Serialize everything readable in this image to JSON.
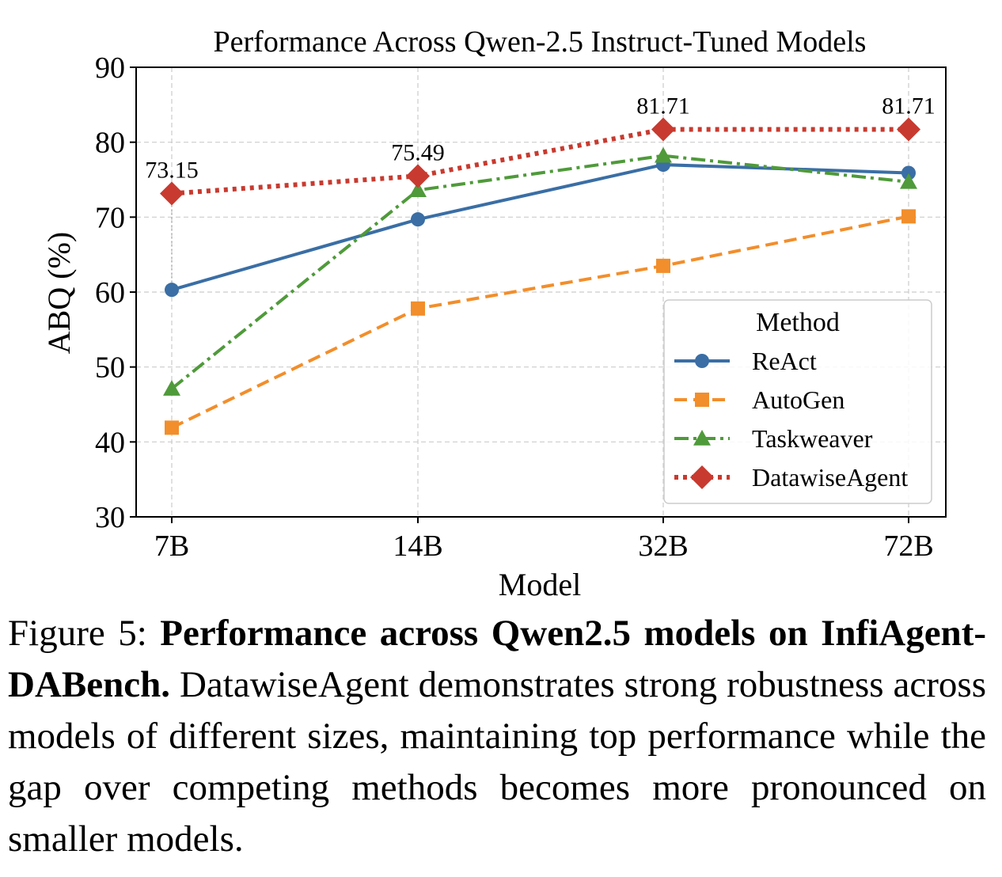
{
  "chart_data": {
    "type": "line",
    "title": "Performance Across Qwen-2.5 Instruct-Tuned Models",
    "xlabel": "Model",
    "ylabel": "ABQ (%)",
    "categories": [
      "7B",
      "14B",
      "32B",
      "72B"
    ],
    "ylim": [
      30,
      90
    ],
    "yticks": [
      30,
      40,
      50,
      60,
      70,
      80,
      90
    ],
    "grid": true,
    "legend": {
      "title": "Method",
      "position": "lower-right"
    },
    "series": [
      {
        "name": "ReAct",
        "values": [
          60.3,
          69.7,
          77.0,
          75.9
        ],
        "color": "#3a6ea5",
        "marker": "circle",
        "dash": "solid"
      },
      {
        "name": "AutoGen",
        "values": [
          41.9,
          57.8,
          63.5,
          70.1
        ],
        "color": "#f28e2b",
        "marker": "square",
        "dash": "dashed"
      },
      {
        "name": "Taskweaver",
        "values": [
          47.1,
          73.6,
          78.2,
          74.7
        ],
        "color": "#4f9a3a",
        "marker": "triangle",
        "dash": "dashdot"
      },
      {
        "name": "DatawiseAgent",
        "values": [
          73.15,
          75.49,
          81.71,
          81.71
        ],
        "color": "#c83a2f",
        "marker": "diamond",
        "dash": "dotted",
        "labels": [
          "73.15",
          "75.49",
          "81.71",
          "81.71"
        ]
      }
    ]
  },
  "caption": {
    "figure_label": "Figure 5:",
    "bold_text": "Performance across Qwen2.5 models on InfiAgent-DABench.",
    "body_text": "DatawiseAgent demonstrates strong robustness across models of different sizes, maintaining top performance while the gap over competing methods becomes more pronounced on smaller models."
  }
}
